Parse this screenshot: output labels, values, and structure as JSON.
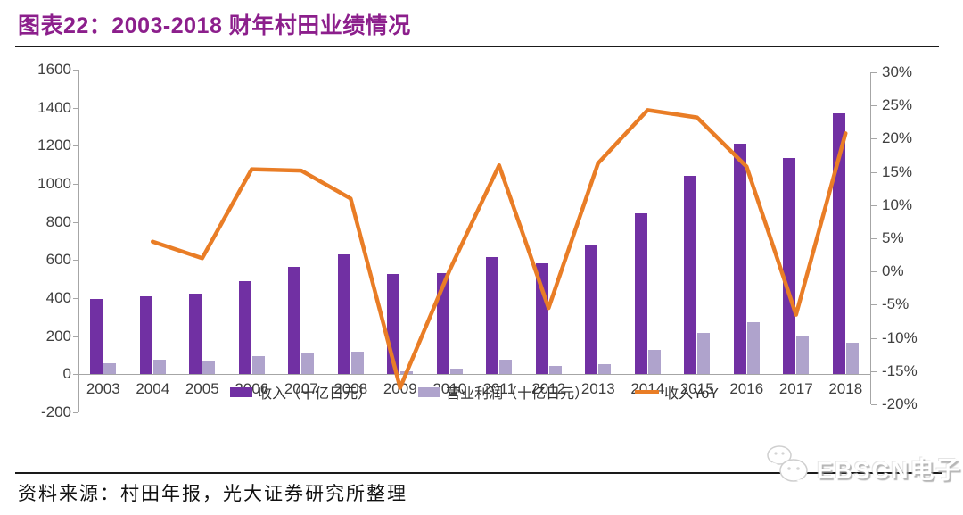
{
  "title": "图表22：2003-2018 财年村田业绩情况",
  "source": "资料来源：村田年报，光大证券研究所整理",
  "watermark": {
    "text": "EBSCN电子",
    "icon": "wechat-chat-bubbles-icon"
  },
  "colors": {
    "title": "#8C1F8C",
    "axis_line": "#A6A6A6",
    "axis_label": "#3F3F3F",
    "revenue_bar": "#7130A3",
    "profit_bar": "#AFA3CC",
    "yoy_line": "#E97D26"
  },
  "chart_data": {
    "type": "bar+line",
    "title": "2003-2018 财年村田业绩情况",
    "x_categories": [
      "2003",
      "2004",
      "2005",
      "2006",
      "2007",
      "2008",
      "2009",
      "2010",
      "2011",
      "2012",
      "2013",
      "2014",
      "2015",
      "2016",
      "2017",
      "2018"
    ],
    "series": [
      {
        "name": "收入（十亿日元）",
        "type": "bar",
        "axis": "left",
        "color": "#7130A3",
        "values": [
          395,
          410,
          425,
          490,
          565,
          630,
          525,
          530,
          615,
          585,
          680,
          845,
          1040,
          1210,
          1135,
          1370
        ]
      },
      {
        "name": "营业利润（十亿日元）",
        "type": "bar",
        "axis": "left",
        "color": "#AFA3CC",
        "values": [
          60,
          75,
          68,
          95,
          115,
          120,
          15,
          30,
          75,
          45,
          55,
          130,
          215,
          275,
          205,
          165
        ]
      },
      {
        "name": "收入YoY",
        "type": "line",
        "axis": "right",
        "color": "#E97D26",
        "values": [
          null,
          4.5,
          2.0,
          15.4,
          15.2,
          11.0,
          -17.5,
          0.2,
          16.0,
          -5.5,
          16.3,
          24.3,
          23.2,
          15.8,
          -6.5,
          20.8
        ]
      }
    ],
    "left_axis": {
      "min": -200,
      "max": 1600,
      "tick_values": [
        -200,
        0,
        200,
        400,
        600,
        800,
        1000,
        1200,
        1400,
        1600
      ],
      "tick_labels": [
        "-200",
        "0",
        "200",
        "400",
        "600",
        "800",
        "1000",
        "1200",
        "1400",
        "1600"
      ]
    },
    "right_axis": {
      "min": -20,
      "max": 30,
      "format": "percent",
      "tick_values": [
        -20,
        -15,
        -10,
        -5,
        0,
        5,
        10,
        15,
        20,
        25,
        30
      ],
      "tick_labels": [
        "-20%",
        "-15%",
        "-10%",
        "-5%",
        "0%",
        "5%",
        "10%",
        "15%",
        "20%",
        "25%",
        "30%"
      ]
    },
    "legend_position": "bottom",
    "grid": false
  }
}
